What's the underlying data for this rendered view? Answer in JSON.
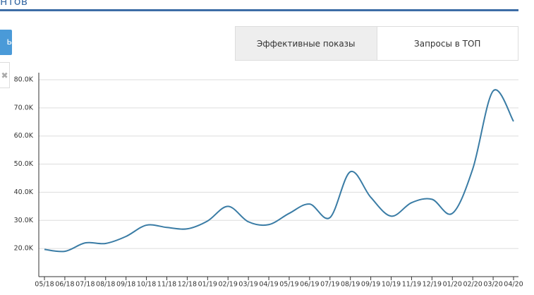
{
  "header": {
    "title": "нтов"
  },
  "button": {
    "label": "ь"
  },
  "tabs": [
    "Эффективные показы",
    "Запросы в ТОП"
  ],
  "chart_data": {
    "type": "line",
    "categories": [
      "05/18",
      "06/18",
      "07/18",
      "08/18",
      "09/18",
      "10/18",
      "11/18",
      "12/18",
      "01/19",
      "02/19",
      "03/19",
      "04/19",
      "05/19",
      "06/19",
      "07/19",
      "08/19",
      "09/19",
      "10/19",
      "11/19",
      "12/19",
      "01/20",
      "02/20",
      "03/20",
      "04/20"
    ],
    "series": [
      {
        "color": "#3a7ca5",
        "values": [
          19700,
          19000,
          22000,
          21800,
          24300,
          28300,
          27500,
          27000,
          29800,
          35000,
          29500,
          28500,
          32500,
          35800,
          31000,
          47300,
          38200,
          31500,
          36300,
          37500,
          32500,
          48300,
          76000,
          65200
        ]
      }
    ],
    "ylim": [
      10000,
      82500
    ],
    "yticks": [
      {
        "value": 20000,
        "label": "20.0K"
      },
      {
        "value": 30000,
        "label": "30.0K"
      },
      {
        "value": 40000,
        "label": "40.0K"
      },
      {
        "value": 50000,
        "label": "50.0K"
      },
      {
        "value": 60000,
        "label": "60.0K"
      },
      {
        "value": 70000,
        "label": "70.0K"
      },
      {
        "value": 80000,
        "label": "80.0K"
      }
    ],
    "grid": true
  }
}
